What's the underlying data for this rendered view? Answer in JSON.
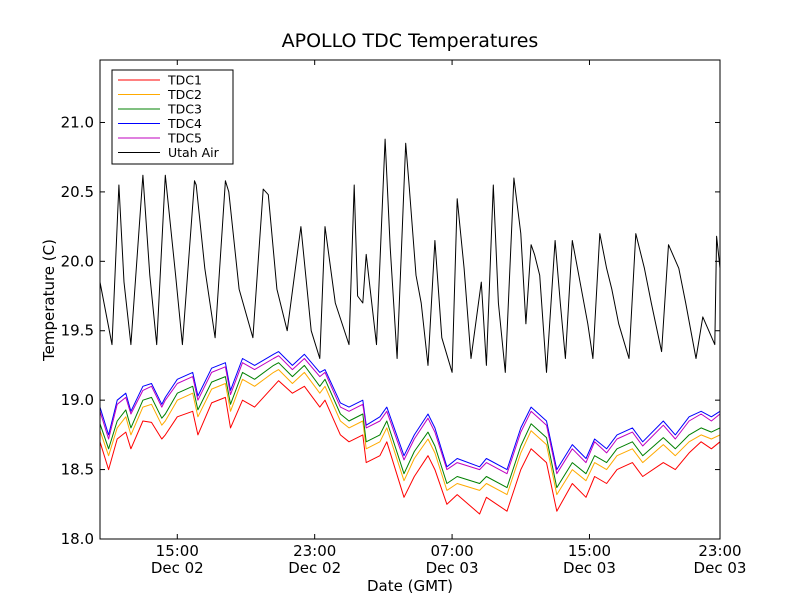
{
  "chart_data": {
    "type": "line",
    "title": "APOLLO TDC Temperatures",
    "xlabel": "Date (GMT)",
    "ylabel": "Temperature (C)",
    "xlim": [
      10.5,
      46.6
    ],
    "ylim": [
      18.0,
      21.45
    ],
    "grid": false,
    "legend_position": "top-left",
    "xticks": [
      {
        "value": 15,
        "line1": "15:00",
        "line2": "Dec 02"
      },
      {
        "value": 23,
        "line1": "23:00",
        "line2": "Dec 02"
      },
      {
        "value": 31,
        "line1": "07:00",
        "line2": "Dec 03"
      },
      {
        "value": 39,
        "line1": "15:00",
        "line2": "Dec 03"
      },
      {
        "value": 47,
        "line1": "23:00",
        "line2": "Dec 03"
      }
    ],
    "yticks": [
      "18.0",
      "18.5",
      "19.0",
      "19.5",
      "20.0",
      "20.5",
      "21.0"
    ],
    "x": [
      10.5,
      11.0,
      11.5,
      12.0,
      12.3,
      13.0,
      13.5,
      14.1,
      14.3,
      15.0,
      15.9,
      16.2,
      17.0,
      17.8,
      18.1,
      18.8,
      19.5,
      20.6,
      20.9,
      21.7,
      22.4,
      23.3,
      23.6,
      24.5,
      25.0,
      25.8,
      26.0,
      26.8,
      27.2,
      28.2,
      28.8,
      29.6,
      30.0,
      30.7,
      31.3,
      32.6,
      33.0,
      34.2,
      35.0,
      35.6,
      36.5,
      37.1,
      38.0,
      38.8,
      39.3,
      40.0,
      40.6,
      41.5,
      42.1,
      43.3,
      44.0,
      44.8,
      45.5,
      46.1,
      46.6
    ],
    "series": [
      {
        "name": "TDC1",
        "color": "#ff0000",
        "values": [
          18.7,
          18.5,
          18.72,
          18.77,
          18.65,
          18.85,
          18.84,
          18.72,
          18.75,
          18.88,
          18.92,
          18.75,
          18.98,
          19.02,
          18.8,
          19.0,
          18.95,
          19.1,
          19.14,
          19.05,
          19.1,
          18.95,
          19.0,
          18.75,
          18.7,
          18.75,
          18.55,
          18.6,
          18.7,
          18.3,
          18.45,
          18.6,
          18.5,
          18.25,
          18.32,
          18.18,
          18.3,
          18.2,
          18.5,
          18.65,
          18.55,
          18.2,
          18.4,
          18.3,
          18.45,
          18.4,
          18.5,
          18.55,
          18.45,
          18.55,
          18.5,
          18.62,
          18.7,
          18.65,
          18.7
        ]
      },
      {
        "name": "TDC2",
        "color": "#ffaa00",
        "values": [
          18.78,
          18.6,
          18.8,
          18.88,
          18.75,
          18.95,
          18.97,
          18.82,
          18.85,
          19.0,
          19.05,
          18.88,
          19.08,
          19.12,
          18.92,
          19.15,
          19.1,
          19.2,
          19.22,
          19.12,
          19.2,
          19.05,
          19.1,
          18.85,
          18.8,
          18.85,
          18.65,
          18.7,
          18.8,
          18.42,
          18.58,
          18.72,
          18.62,
          18.35,
          18.4,
          18.35,
          18.4,
          18.32,
          18.62,
          18.78,
          18.68,
          18.32,
          18.5,
          18.42,
          18.55,
          18.5,
          18.6,
          18.65,
          18.55,
          18.68,
          18.6,
          18.7,
          18.75,
          18.72,
          18.75
        ]
      },
      {
        "name": "TDC3",
        "color": "#008000",
        "values": [
          18.83,
          18.65,
          18.85,
          18.93,
          18.8,
          19.0,
          19.02,
          18.87,
          18.9,
          19.05,
          19.1,
          18.93,
          19.13,
          19.17,
          18.97,
          19.2,
          19.15,
          19.25,
          19.27,
          19.17,
          19.25,
          19.1,
          19.15,
          18.9,
          18.85,
          18.9,
          18.7,
          18.75,
          18.85,
          18.47,
          18.63,
          18.77,
          18.67,
          18.4,
          18.45,
          18.4,
          18.45,
          18.37,
          18.67,
          18.83,
          18.73,
          18.37,
          18.55,
          18.47,
          18.6,
          18.55,
          18.65,
          18.7,
          18.6,
          18.73,
          18.65,
          18.75,
          18.8,
          18.77,
          18.8
        ]
      },
      {
        "name": "TDC4",
        "color": "#0000ff",
        "values": [
          18.95,
          18.75,
          19.0,
          19.05,
          18.92,
          19.1,
          19.12,
          18.97,
          19.02,
          19.15,
          19.2,
          19.03,
          19.23,
          19.27,
          19.07,
          19.3,
          19.25,
          19.33,
          19.35,
          19.25,
          19.33,
          19.2,
          19.22,
          18.98,
          18.95,
          19.0,
          18.82,
          18.88,
          18.95,
          18.6,
          18.75,
          18.9,
          18.8,
          18.52,
          18.58,
          18.52,
          18.58,
          18.5,
          18.8,
          18.95,
          18.85,
          18.5,
          18.68,
          18.58,
          18.72,
          18.65,
          18.75,
          18.8,
          18.7,
          18.85,
          18.75,
          18.88,
          18.92,
          18.88,
          18.92
        ]
      },
      {
        "name": "TDC5",
        "color": "#bf00bf",
        "values": [
          18.92,
          18.72,
          18.97,
          19.02,
          18.9,
          19.07,
          19.1,
          18.95,
          19.0,
          19.12,
          19.17,
          19.0,
          19.2,
          19.24,
          19.04,
          19.27,
          19.22,
          19.3,
          19.32,
          19.22,
          19.3,
          19.17,
          19.2,
          18.95,
          18.92,
          18.97,
          18.8,
          18.85,
          18.92,
          18.57,
          18.72,
          18.87,
          18.77,
          18.5,
          18.55,
          18.5,
          18.55,
          18.47,
          18.77,
          18.92,
          18.82,
          18.47,
          18.65,
          18.55,
          18.7,
          18.62,
          18.72,
          18.77,
          18.67,
          18.82,
          18.72,
          18.85,
          18.9,
          18.85,
          18.9
        ]
      }
    ],
    "air": {
      "name": "Utah Air",
      "color": "#000000",
      "x": [
        10.5,
        11.2,
        11.6,
        11.9,
        12.3,
        13.0,
        13.4,
        13.8,
        14.3,
        14.9,
        15.3,
        16.0,
        16.1,
        16.6,
        17.2,
        17.8,
        18.0,
        18.6,
        19.4,
        20.0,
        20.3,
        20.8,
        21.4,
        22.2,
        22.8,
        23.3,
        23.6,
        24.2,
        25.0,
        25.3,
        25.5,
        25.8,
        26.0,
        26.6,
        27.1,
        27.4,
        27.8,
        28.3,
        28.5,
        28.9,
        29.2,
        29.6,
        30.0,
        30.4,
        31.0,
        31.3,
        31.7,
        32.1,
        32.7,
        33.0,
        33.4,
        33.7,
        34.1,
        34.6,
        35.0,
        35.3,
        35.6,
        35.8,
        36.1,
        36.5,
        37.0,
        37.3,
        37.6,
        38.0,
        38.3,
        38.9,
        39.2,
        39.6,
        40.0,
        40.3,
        40.7,
        41.3,
        41.7,
        42.2,
        42.6,
        43.2,
        43.6,
        44.2,
        44.6,
        45.2,
        45.6,
        46.3,
        46.4,
        46.6
      ],
      "values": [
        19.85,
        19.4,
        20.55,
        19.85,
        19.4,
        20.62,
        19.9,
        19.4,
        20.62,
        19.9,
        19.4,
        20.58,
        20.55,
        19.95,
        19.45,
        20.58,
        20.5,
        19.8,
        19.45,
        20.52,
        20.48,
        19.8,
        19.5,
        20.25,
        19.5,
        19.3,
        20.25,
        19.7,
        19.4,
        20.55,
        19.75,
        19.7,
        20.05,
        19.4,
        20.88,
        20.1,
        19.3,
        20.85,
        20.55,
        19.9,
        19.7,
        19.25,
        20.15,
        19.45,
        19.2,
        20.45,
        19.95,
        19.3,
        19.85,
        19.25,
        20.55,
        19.7,
        19.2,
        20.6,
        20.2,
        19.55,
        20.12,
        20.05,
        19.9,
        19.2,
        20.15,
        19.7,
        19.3,
        20.15,
        19.95,
        19.55,
        19.3,
        20.2,
        19.95,
        19.8,
        19.55,
        19.3,
        20.2,
        19.95,
        19.7,
        19.35,
        20.12,
        19.95,
        19.7,
        19.3,
        19.6,
        19.4,
        20.18,
        19.95
      ]
    }
  }
}
